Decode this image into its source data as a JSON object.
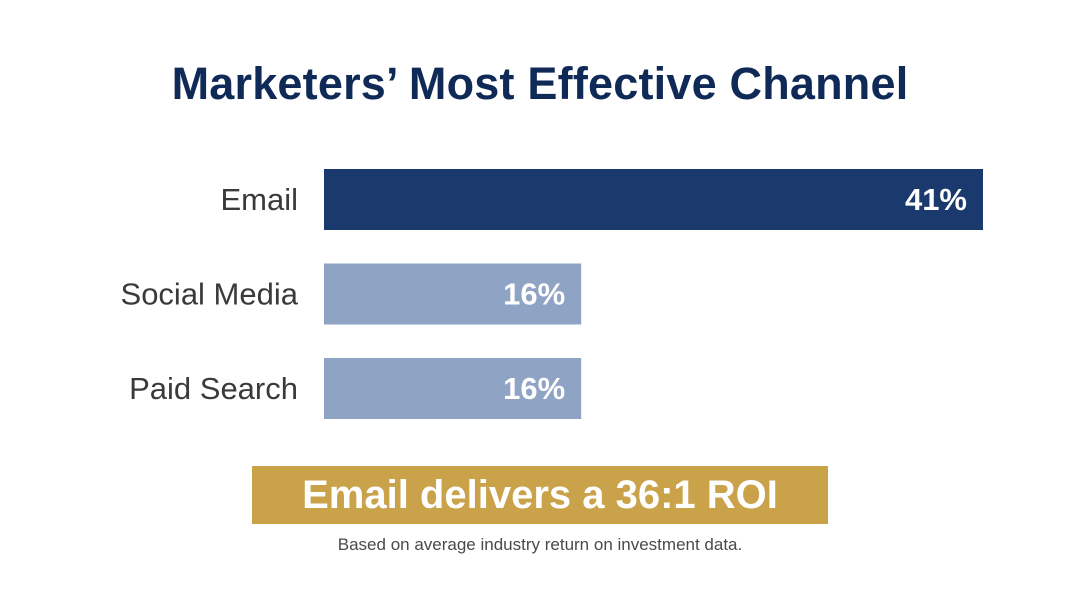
{
  "chart_data": {
    "type": "bar",
    "orientation": "horizontal",
    "title": "Marketers’ Most Effective Channel",
    "categories": [
      "Email",
      "Social Media",
      "Paid Search"
    ],
    "values": [
      41,
      16,
      16
    ],
    "value_labels": [
      "41%",
      "16%",
      "16%"
    ],
    "xlim": [
      0,
      41
    ],
    "grid": false,
    "colors": [
      "#1a3a6e",
      "#8fa4c4",
      "#8fa4c4"
    ],
    "label_color": "#3a3a3a",
    "value_label_color": "#ffffff"
  },
  "callout": {
    "text": "Email delivers a 36:1 ROI",
    "background": "#c9a24a"
  },
  "footnote": "Based on average industry return on investment data."
}
